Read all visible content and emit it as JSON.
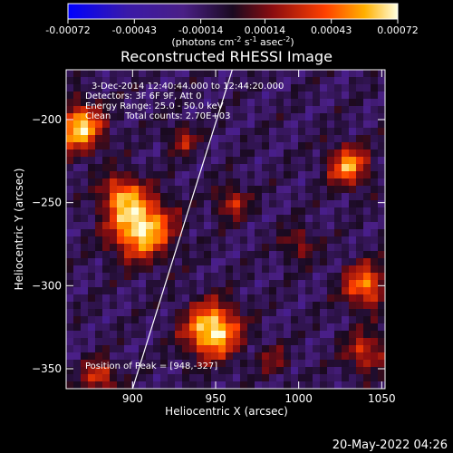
{
  "chart_data": {
    "type": "heatmap",
    "title": "Reconstructed RHESSI Image",
    "xlabel": "Heliocentric X (arcsec)",
    "ylabel": "Heliocentric Y (arcsec)",
    "xlim": [
      860,
      1052
    ],
    "ylim": [
      -362,
      -170
    ],
    "x_ticks": [
      900,
      950,
      1000,
      1050
    ],
    "y_ticks": [
      -200,
      -250,
      -300,
      -350
    ],
    "colorbar": {
      "min": -0.00072,
      "max": 0.00072,
      "tick_values": [
        -0.00072,
        -0.00043,
        -0.00014,
        0.00014,
        0.00043,
        0.00072
      ],
      "tick_labels": [
        "-0.00072",
        "-0.00043",
        "-0.00014",
        "0.00014",
        "0.00043",
        "0.00072"
      ],
      "unit_label": "(photons cm",
      "unit_exp1": "-2",
      "unit_mid": " s",
      "unit_exp2": "-1",
      "unit_mid2": " asec",
      "unit_exp3": "-2",
      "unit_end": ")"
    },
    "annotations": [
      "3-Dec-2014 12:40:44.000 to 12:44:20.000",
      "Detectors: 3F 6F 9F, Att 0",
      "Energy Range: 25.0 - 50.0 keV",
      "Clean     Total counts: 2.70E+03"
    ],
    "peak_text": "Position of Peak = [948,-327]",
    "limb_line": [
      [
        900,
        -362
      ],
      [
        960,
        -170
      ]
    ],
    "sources": [
      {
        "x": 868,
        "y": -205,
        "amp": 0.9,
        "w": 14
      },
      {
        "x": 905,
        "y": -265,
        "amp": 1.0,
        "w": 18
      },
      {
        "x": 893,
        "y": -245,
        "amp": 0.6,
        "w": 12
      },
      {
        "x": 948,
        "y": -327,
        "amp": 1.0,
        "w": 16
      },
      {
        "x": 1030,
        "y": -228,
        "amp": 0.75,
        "w": 12
      },
      {
        "x": 1040,
        "y": -300,
        "amp": 0.7,
        "w": 13
      },
      {
        "x": 1040,
        "y": -340,
        "amp": 0.5,
        "w": 12
      },
      {
        "x": 960,
        "y": -250,
        "amp": 0.45,
        "w": 10
      },
      {
        "x": 930,
        "y": -212,
        "amp": 0.4,
        "w": 9
      },
      {
        "x": 1000,
        "y": -275,
        "amp": 0.35,
        "w": 10
      },
      {
        "x": 880,
        "y": -355,
        "amp": 0.55,
        "w": 10
      },
      {
        "x": 985,
        "y": -345,
        "amp": 0.3,
        "w": 9
      }
    ]
  },
  "footer": {
    "timestamp": "20-May-2022 04:26"
  }
}
